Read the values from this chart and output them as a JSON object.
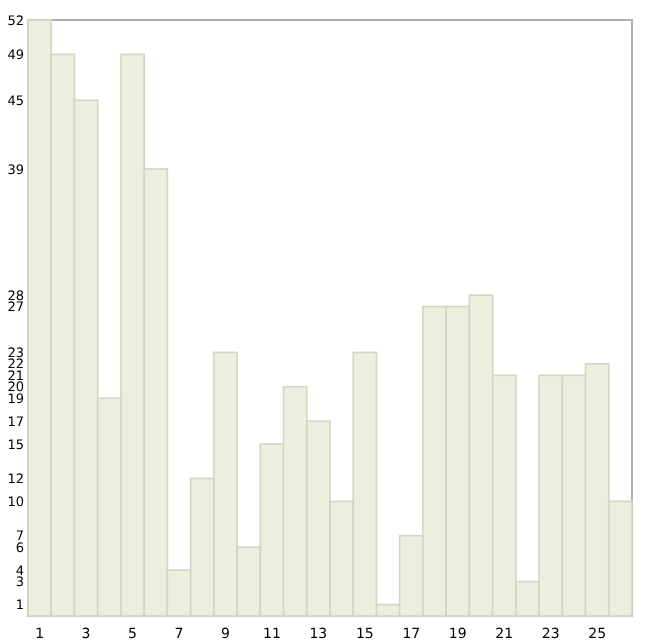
{
  "chart_data": {
    "type": "bar",
    "categories": [
      "1",
      null,
      "3",
      null,
      "5",
      null,
      "7",
      null,
      "9",
      null,
      "11",
      null,
      "13",
      null,
      "15",
      null,
      "17",
      null,
      "19",
      null,
      "21",
      null,
      "23",
      null,
      "25",
      null
    ],
    "values": [
      52,
      49,
      45,
      19,
      49,
      39,
      4,
      12,
      23,
      6,
      15,
      20,
      17,
      10,
      23,
      1,
      7,
      27,
      27,
      28,
      21,
      3,
      21,
      21,
      22,
      10
    ],
    "color": "#eeeedf",
    "ylim": [
      0,
      52
    ],
    "yticks": [
      1,
      3,
      4,
      6,
      7,
      10,
      12,
      15,
      17,
      19,
      20,
      21,
      22,
      23,
      27,
      28,
      39,
      45,
      49,
      52
    ],
    "grid": false
  }
}
